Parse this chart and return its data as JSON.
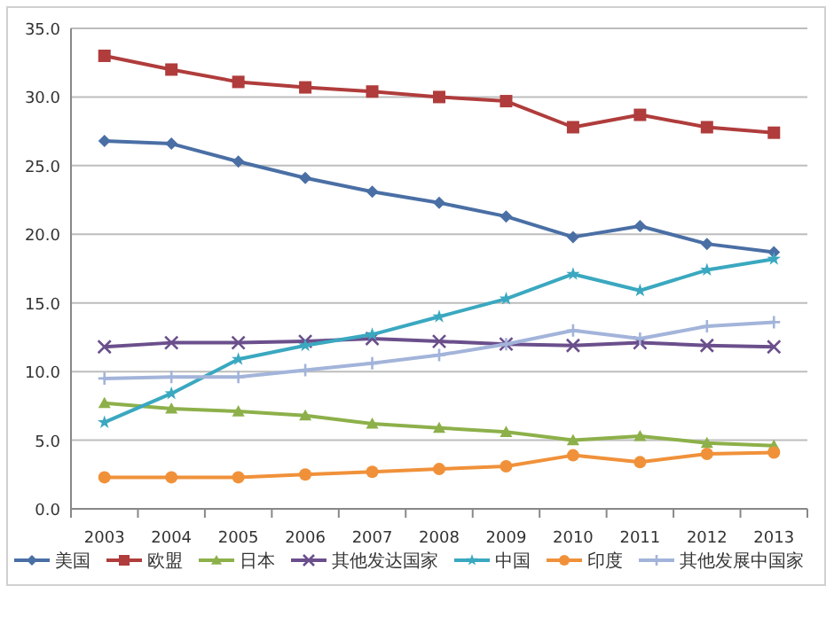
{
  "chart_data": {
    "type": "line",
    "categories": [
      "2003",
      "2004",
      "2005",
      "2006",
      "2007",
      "2008",
      "2009",
      "2010",
      "2011",
      "2012",
      "2013"
    ],
    "series": [
      {
        "name": "美国",
        "color": "#4a6fa5",
        "marker": "diamond",
        "values": [
          26.8,
          26.6,
          25.3,
          24.1,
          23.1,
          22.3,
          21.3,
          19.8,
          20.6,
          19.3,
          18.7
        ]
      },
      {
        "name": "欧盟",
        "color": "#b03c3c",
        "marker": "square",
        "values": [
          33.0,
          32.0,
          31.1,
          30.7,
          30.4,
          30.0,
          29.7,
          27.8,
          28.7,
          27.8,
          27.4
        ]
      },
      {
        "name": "日本",
        "color": "#8db04a",
        "marker": "triangle",
        "values": [
          7.7,
          7.3,
          7.1,
          6.8,
          6.2,
          5.9,
          5.6,
          5.0,
          5.3,
          4.8,
          4.6
        ]
      },
      {
        "name": "其他发达国家",
        "color": "#6b4f8c",
        "marker": "cross",
        "values": [
          11.8,
          12.1,
          12.1,
          12.2,
          12.4,
          12.2,
          12.0,
          11.9,
          12.1,
          11.9,
          11.8
        ]
      },
      {
        "name": "中国",
        "color": "#3aa8c0",
        "marker": "star",
        "values": [
          6.3,
          8.4,
          10.9,
          11.9,
          12.7,
          14.0,
          15.3,
          17.1,
          15.9,
          17.4,
          18.2
        ]
      },
      {
        "name": "印度",
        "color": "#f0913a",
        "marker": "circle",
        "values": [
          2.3,
          2.3,
          2.3,
          2.5,
          2.7,
          2.9,
          3.1,
          3.9,
          3.4,
          4.0,
          4.1
        ]
      },
      {
        "name": "其他发展中国家",
        "color": "#a3b4da",
        "marker": "plus",
        "values": [
          9.5,
          9.6,
          9.6,
          10.1,
          10.6,
          11.2,
          12.0,
          13.0,
          12.4,
          13.3,
          13.6
        ]
      }
    ],
    "ylim": [
      0,
      35
    ],
    "yticks": [
      {
        "value": 0,
        "label": "0.0"
      },
      {
        "value": 5,
        "label": "5.0"
      },
      {
        "value": 10,
        "label": "10.0"
      },
      {
        "value": 15,
        "label": "15.0"
      },
      {
        "value": 20,
        "label": "20.0"
      },
      {
        "value": 25,
        "label": "25.0"
      },
      {
        "value": 30,
        "label": "30.0"
      },
      {
        "value": 35,
        "label": "35.0"
      }
    ],
    "grid": "y",
    "legend": "bottom"
  }
}
